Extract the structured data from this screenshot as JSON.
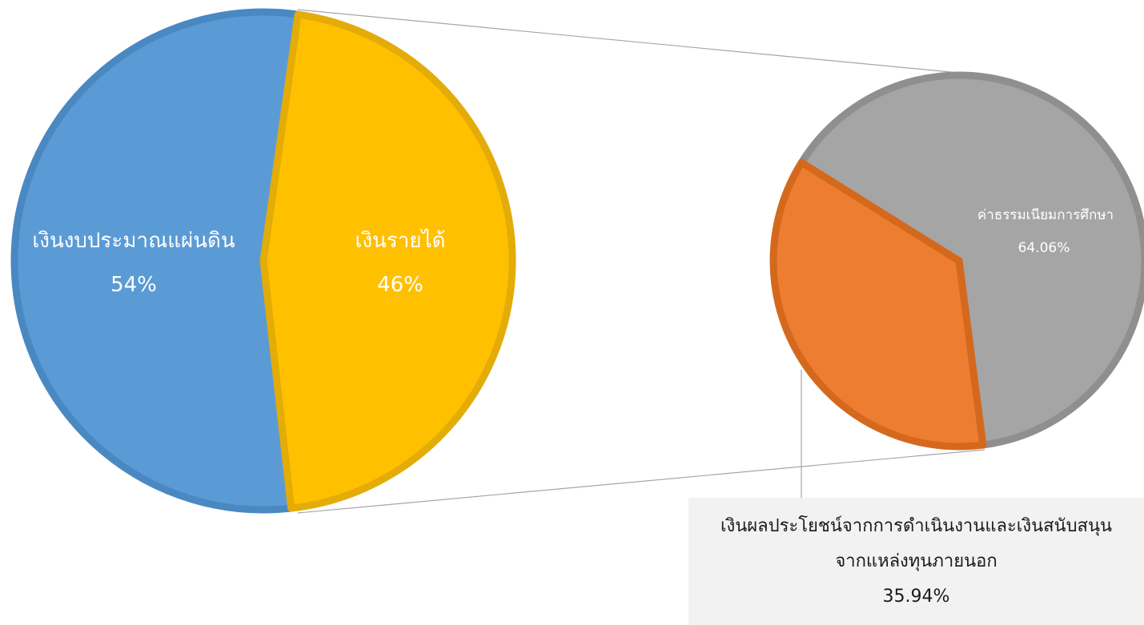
{
  "chart_data": [
    {
      "type": "pie",
      "slices": [
        {
          "label": "เงินงบประมาณแผ่นดิน",
          "value": 54,
          "value_label": "54%",
          "color": "#5b9bd5",
          "edge": "#4a88c2"
        },
        {
          "label": "เงินรายได้",
          "value": 46,
          "value_label": "46%",
          "color": "#ffc000",
          "edge": "#e3ac08"
        }
      ]
    },
    {
      "type": "pie",
      "breakdown_of": "เงินรายได้",
      "slices": [
        {
          "label": "ค่าธรรมเนียมการศึกษา",
          "value": 64.06,
          "value_label": "64.06%",
          "color": "#a5a5a5",
          "edge": "#8f8f8f"
        },
        {
          "label_lines": [
            "เงินผลประโยชน์จากการดำเนินงานและเงินสนับสนุน",
            "จากแหล่งทุนภายนอก"
          ],
          "value": 35.94,
          "value_label": "35.94%",
          "color": "#ed7d31",
          "edge": "#d4691e"
        }
      ]
    }
  ]
}
